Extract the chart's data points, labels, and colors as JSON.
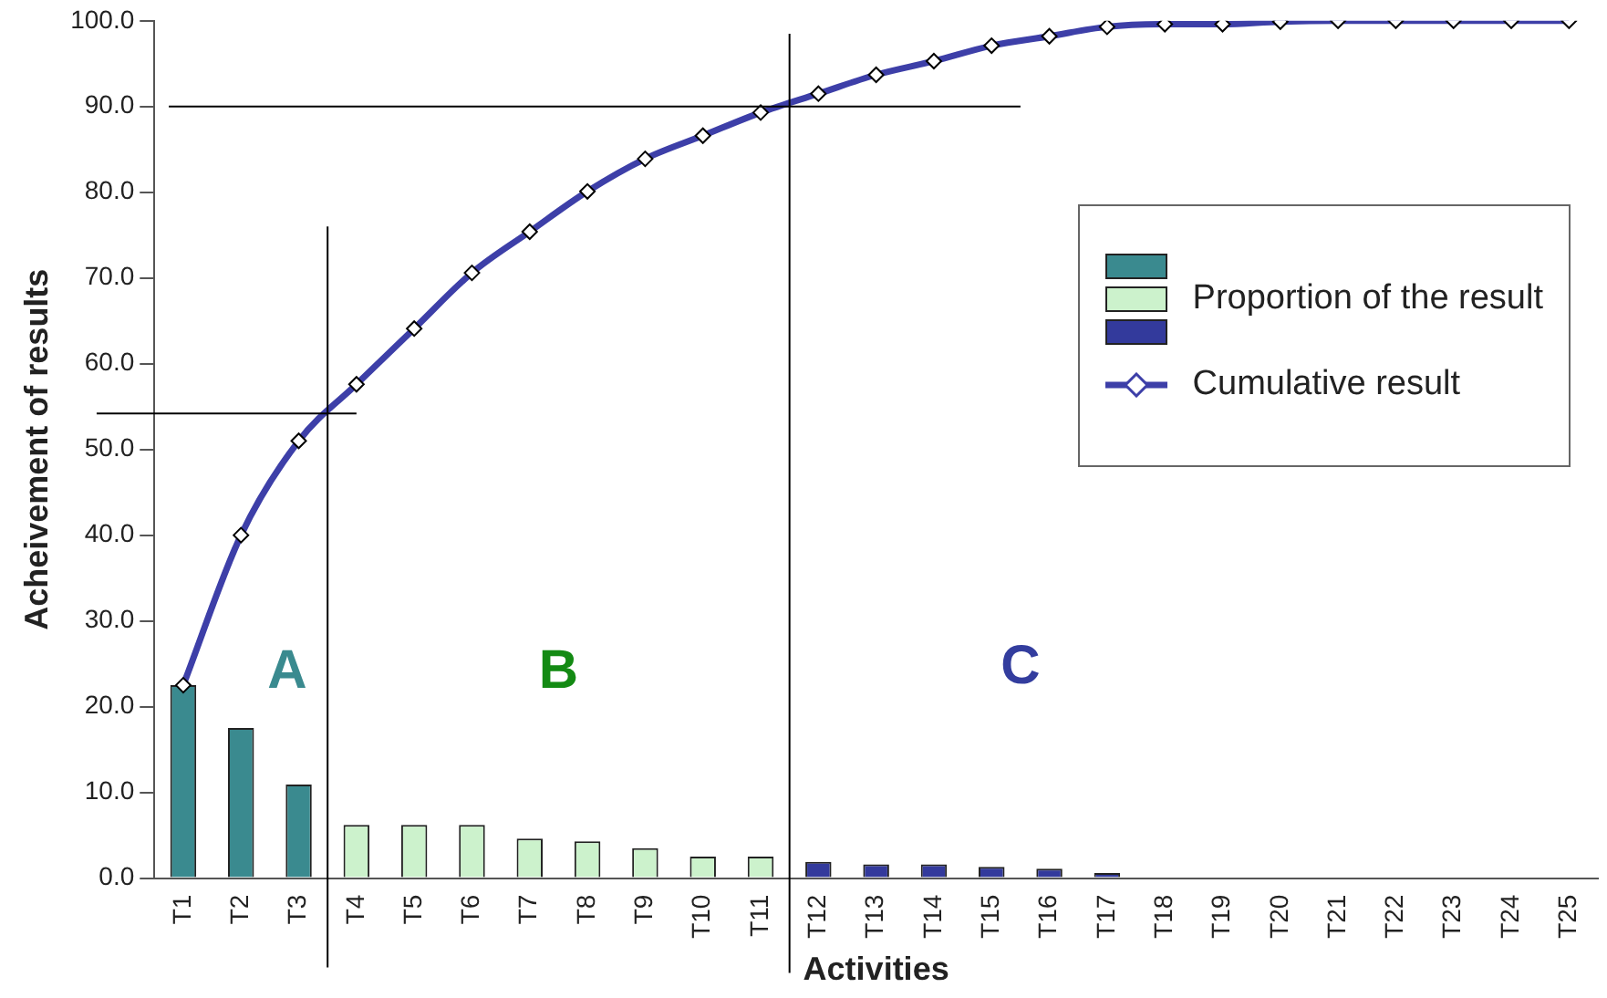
{
  "chart_data": {
    "type": "bar",
    "xlabel": "Activities",
    "ylabel": "Acheivement of results",
    "categories": [
      "T1",
      "T2",
      "T3",
      "T4",
      "T5",
      "T6",
      "T7",
      "T8",
      "T9",
      "T10",
      "T11",
      "T12",
      "T13",
      "T14",
      "T15",
      "T16",
      "T17",
      "T18",
      "T19",
      "T20",
      "T21",
      "T22",
      "T23",
      "T24",
      "T25"
    ],
    "series": [
      {
        "color": "#3a8a8f",
        "values": [
          22.5,
          17.5,
          10.9,
          null,
          null,
          null,
          null,
          null,
          null,
          null,
          null,
          null,
          null,
          null,
          null,
          null,
          null,
          null,
          null,
          null,
          null,
          null,
          null,
          null,
          null
        ]
      },
      {
        "name": "Proportion of the result",
        "color": "#ccf2cc",
        "values": [
          null,
          null,
          null,
          6.2,
          6.2,
          6.2,
          4.6,
          4.3,
          3.5,
          2.5,
          2.5,
          null,
          null,
          null,
          null,
          null,
          null,
          null,
          null,
          null,
          null,
          null,
          null,
          null,
          null
        ]
      },
      {
        "color": "#333a9c",
        "values": [
          null,
          null,
          null,
          null,
          null,
          null,
          null,
          null,
          null,
          null,
          null,
          1.9,
          1.6,
          1.6,
          1.3,
          1.1,
          0.6,
          0.1,
          0,
          0,
          0,
          0,
          0,
          0,
          0
        ]
      },
      {
        "type": "line",
        "name": "Cumulative result",
        "color": "#3d3fa8",
        "marker": "diamond",
        "values": [
          22.5,
          40.0,
          51.0,
          57.6,
          64.1,
          70.6,
          75.4,
          80.1,
          83.9,
          86.6,
          89.3,
          91.5,
          93.7,
          95.3,
          97.1,
          98.2,
          99.3,
          99.6,
          99.6,
          99.9,
          100,
          100,
          100,
          100,
          100
        ]
      }
    ],
    "ylim": [
      0,
      100
    ],
    "yticks": [
      {
        "value": 0,
        "label": "0.0"
      },
      {
        "value": 10,
        "label": "10.0"
      },
      {
        "value": 20,
        "label": "20.0"
      },
      {
        "value": 30,
        "label": "30.0"
      },
      {
        "value": 40,
        "label": "40.0"
      },
      {
        "value": 50,
        "label": "50.0"
      },
      {
        "value": 60,
        "label": "60.0"
      },
      {
        "value": 70,
        "label": "70.0"
      },
      {
        "value": 80,
        "label": "80.0"
      },
      {
        "value": 90,
        "label": "90.0"
      },
      {
        "value": 100,
        "label": "100.0"
      }
    ],
    "ref_lines": [
      {
        "axis": "y",
        "value": 90,
        "color": "#000000"
      },
      {
        "axis": "y",
        "value": 54.2,
        "color": "#000000"
      }
    ],
    "annotations": [
      "A",
      "B",
      "C"
    ],
    "grid": false,
    "legend": "right"
  }
}
